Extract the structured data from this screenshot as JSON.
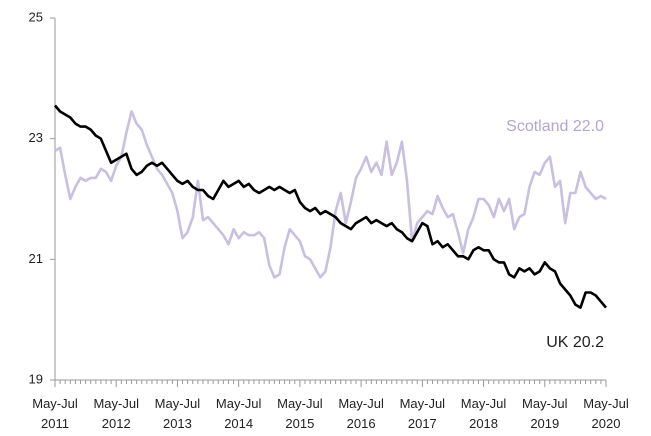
{
  "chart_data": {
    "type": "line",
    "categories": [
      "May-Jul 2011",
      null,
      null,
      null,
      null,
      null,
      null,
      null,
      null,
      null,
      null,
      null,
      "May-Jul 2012",
      null,
      null,
      null,
      null,
      null,
      null,
      null,
      null,
      null,
      null,
      null,
      "May-Jul 2013",
      null,
      null,
      null,
      null,
      null,
      null,
      null,
      null,
      null,
      null,
      null,
      "May-Jul 2014",
      null,
      null,
      null,
      null,
      null,
      null,
      null,
      null,
      null,
      null,
      null,
      "May-Jul 2015",
      null,
      null,
      null,
      null,
      null,
      null,
      null,
      null,
      null,
      null,
      null,
      "May-Jul 2016",
      null,
      null,
      null,
      null,
      null,
      null,
      null,
      null,
      null,
      null,
      null,
      "May-Jul 2017",
      null,
      null,
      null,
      null,
      null,
      null,
      null,
      null,
      null,
      null,
      null,
      "May-Jul 2018",
      null,
      null,
      null,
      null,
      null,
      null,
      null,
      null,
      null,
      null,
      null,
      "May-Jul 2019",
      null,
      null,
      null,
      null,
      null,
      null,
      null,
      null,
      null,
      null,
      null,
      "May-Jul 2020"
    ],
    "series": [
      {
        "name": "UK",
        "color": "#000000",
        "values": [
          23.55,
          23.45,
          23.4,
          23.35,
          23.25,
          23.2,
          23.2,
          23.15,
          23.05,
          23.0,
          22.8,
          22.6,
          22.65,
          22.7,
          22.75,
          22.5,
          22.4,
          22.45,
          22.55,
          22.6,
          22.55,
          22.6,
          22.5,
          22.4,
          22.3,
          22.25,
          22.3,
          22.2,
          22.15,
          22.15,
          22.05,
          22.0,
          22.15,
          22.3,
          22.2,
          22.25,
          22.3,
          22.2,
          22.25,
          22.15,
          22.1,
          22.15,
          22.2,
          22.15,
          22.2,
          22.15,
          22.1,
          22.15,
          21.95,
          21.85,
          21.8,
          21.85,
          21.75,
          21.8,
          21.75,
          21.7,
          21.6,
          21.55,
          21.5,
          21.6,
          21.65,
          21.7,
          21.6,
          21.65,
          21.6,
          21.55,
          21.6,
          21.5,
          21.45,
          21.35,
          21.3,
          21.45,
          21.6,
          21.55,
          21.25,
          21.3,
          21.2,
          21.25,
          21.15,
          21.05,
          21.05,
          21.0,
          21.15,
          21.2,
          21.15,
          21.15,
          21.0,
          20.95,
          20.95,
          20.75,
          20.7,
          20.85,
          20.8,
          20.85,
          20.75,
          20.8,
          20.95,
          20.85,
          20.8,
          20.6,
          20.5,
          20.4,
          20.25,
          20.2,
          20.45,
          20.45,
          20.4,
          20.3,
          20.2
        ]
      },
      {
        "name": "Scotland",
        "color": "#c9bfe0",
        "values": [
          22.8,
          22.85,
          22.4,
          22.0,
          22.2,
          22.35,
          22.3,
          22.35,
          22.35,
          22.5,
          22.45,
          22.3,
          22.55,
          22.7,
          23.1,
          23.45,
          23.25,
          23.15,
          22.9,
          22.7,
          22.5,
          22.4,
          22.25,
          22.1,
          21.8,
          21.35,
          21.45,
          21.7,
          22.3,
          21.65,
          21.7,
          21.6,
          21.5,
          21.4,
          21.25,
          21.5,
          21.35,
          21.45,
          21.4,
          21.4,
          21.45,
          21.35,
          20.9,
          20.7,
          20.75,
          21.2,
          21.5,
          21.4,
          21.3,
          21.05,
          21.0,
          20.85,
          20.7,
          20.8,
          21.2,
          21.8,
          22.1,
          21.6,
          21.95,
          22.35,
          22.5,
          22.7,
          22.45,
          22.6,
          22.4,
          22.95,
          22.4,
          22.6,
          22.95,
          22.3,
          21.3,
          21.6,
          21.7,
          21.8,
          21.75,
          22.05,
          21.85,
          21.7,
          21.75,
          21.45,
          21.1,
          21.5,
          21.7,
          22.0,
          22.0,
          21.9,
          21.7,
          22.0,
          21.8,
          22.0,
          21.5,
          21.7,
          21.75,
          22.2,
          22.45,
          22.4,
          22.6,
          22.7,
          22.2,
          22.3,
          21.6,
          22.1,
          22.1,
          22.45,
          22.2,
          22.1,
          22.0,
          22.05,
          22.0
        ]
      }
    ],
    "annotations": [
      "Scotland  22.0",
      "UK  20.2"
    ],
    "ylim": [
      19,
      25
    ],
    "yticks": [
      19,
      21,
      23,
      25
    ],
    "grid": false
  }
}
